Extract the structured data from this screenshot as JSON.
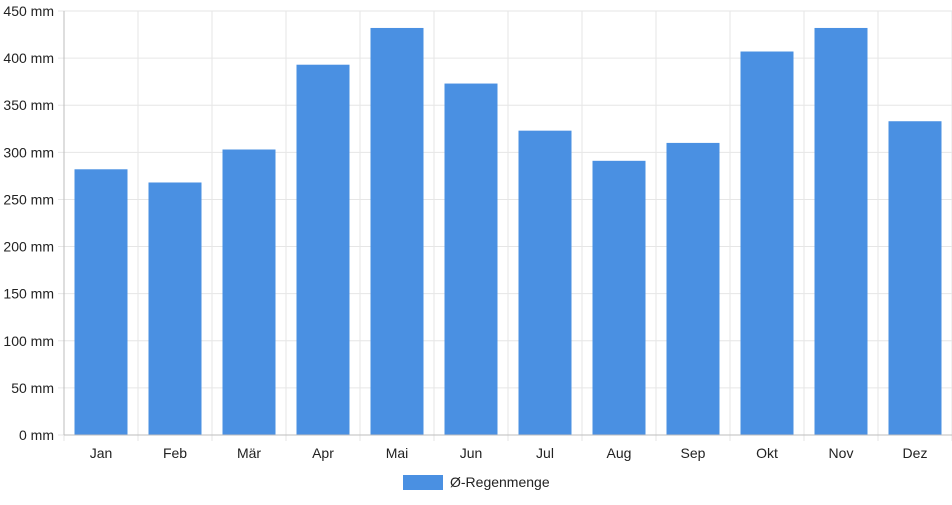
{
  "chart_data": {
    "type": "bar",
    "title": "",
    "xlabel": "",
    "ylabel": "",
    "categories": [
      "Jan",
      "Feb",
      "Mär",
      "Apr",
      "Mai",
      "Jun",
      "Jul",
      "Aug",
      "Sep",
      "Okt",
      "Nov",
      "Dez"
    ],
    "series": [
      {
        "name": "Ø-Regenmenge",
        "values": [
          282,
          268,
          303,
          393,
          432,
          373,
          323,
          291,
          310,
          407,
          432,
          333
        ]
      }
    ],
    "ylim": [
      0,
      450
    ],
    "yticks": [
      0,
      50,
      100,
      150,
      200,
      250,
      300,
      350,
      400,
      450
    ],
    "yunit": "mm",
    "grid": true,
    "legend_position": "bottom",
    "colors": {
      "bar": "#4a90e2",
      "grid": "#e6e6e6",
      "axis": "#bdbdbd"
    }
  }
}
